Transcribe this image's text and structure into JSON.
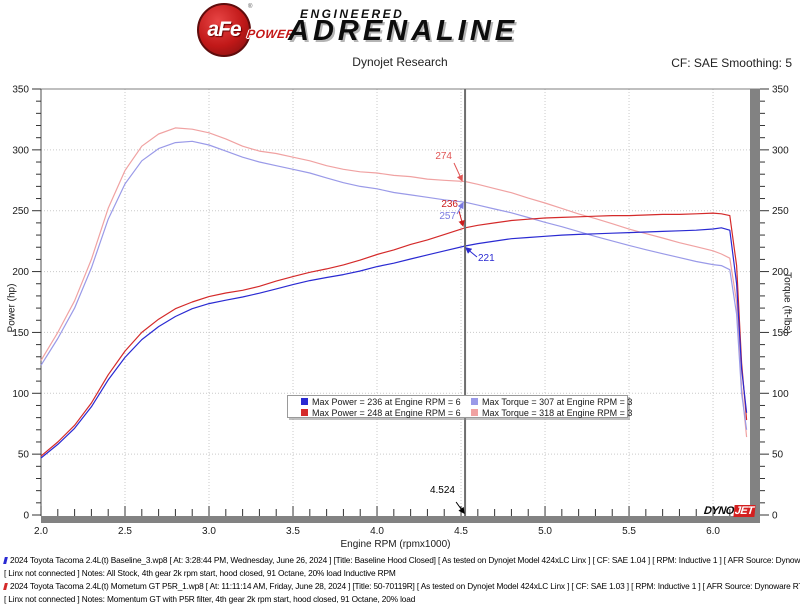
{
  "header": {
    "title": "Dynojet Research",
    "smoothing": "CF: SAE Smoothing: 5",
    "logo": {
      "afe": "aFe",
      "reg": "®",
      "power": "POWER",
      "engineered": "ENGINEERED",
      "adrenaline": "ADRENALINE"
    }
  },
  "chart_data": {
    "type": "line",
    "xlabel": "Engine RPM (rpmx1000)",
    "ylabel_left": "Power (hp)",
    "ylabel_right": "Torque (ft-lbs)",
    "xlim": [
      2.0,
      6.22
    ],
    "ylim": [
      0,
      350
    ],
    "x_major_step": 0.5,
    "x_minor_step": 0.1,
    "y_major_step": 50,
    "y_minor_step": 10,
    "grid": "dotted",
    "series": [
      {
        "name": "torque-momentum-gt",
        "color": "#f0a2a2",
        "axis": "right",
        "points": [
          [
            2.0,
            127
          ],
          [
            2.1,
            150
          ],
          [
            2.2,
            176
          ],
          [
            2.3,
            210
          ],
          [
            2.4,
            252
          ],
          [
            2.5,
            283
          ],
          [
            2.6,
            303
          ],
          [
            2.7,
            313
          ],
          [
            2.8,
            318
          ],
          [
            2.9,
            317
          ],
          [
            3.0,
            314
          ],
          [
            3.1,
            309
          ],
          [
            3.2,
            303
          ],
          [
            3.3,
            299
          ],
          [
            3.4,
            297
          ],
          [
            3.5,
            294
          ],
          [
            3.6,
            291
          ],
          [
            3.7,
            287
          ],
          [
            3.8,
            284
          ],
          [
            3.9,
            282
          ],
          [
            4.0,
            281
          ],
          [
            4.1,
            279
          ],
          [
            4.2,
            278
          ],
          [
            4.3,
            276
          ],
          [
            4.4,
            275
          ],
          [
            4.524,
            274
          ],
          [
            4.6,
            271.7
          ],
          [
            4.7,
            268.2
          ],
          [
            4.8,
            264.8
          ],
          [
            4.9,
            260.4
          ],
          [
            5.0,
            256.3
          ],
          [
            5.1,
            251.9
          ],
          [
            5.2,
            247.4
          ],
          [
            5.3,
            243.5
          ],
          [
            5.4,
            239.3
          ],
          [
            5.5,
            234.9
          ],
          [
            5.6,
            231.2
          ],
          [
            5.7,
            227.6
          ],
          [
            5.8,
            223.7
          ],
          [
            5.9,
            220.4
          ],
          [
            6.0,
            217.1
          ],
          [
            6.05,
            214.4
          ],
          [
            6.1,
            211
          ],
          [
            6.14,
            175
          ],
          [
            6.17,
            105
          ],
          [
            6.2,
            64
          ]
        ]
      },
      {
        "name": "torque-baseline",
        "color": "#9a9ae8",
        "axis": "right",
        "points": [
          [
            2.0,
            123
          ],
          [
            2.1,
            145
          ],
          [
            2.2,
            170
          ],
          [
            2.3,
            203
          ],
          [
            2.4,
            243
          ],
          [
            2.5,
            272
          ],
          [
            2.6,
            291
          ],
          [
            2.7,
            301
          ],
          [
            2.8,
            306
          ],
          [
            2.9,
            307
          ],
          [
            3.0,
            304
          ],
          [
            3.1,
            299
          ],
          [
            3.2,
            294
          ],
          [
            3.3,
            290
          ],
          [
            3.4,
            287
          ],
          [
            3.5,
            284
          ],
          [
            3.6,
            281
          ],
          [
            3.7,
            277
          ],
          [
            3.8,
            273
          ],
          [
            3.9,
            270
          ],
          [
            4.0,
            268
          ],
          [
            4.1,
            265
          ],
          [
            4.2,
            263
          ],
          [
            4.3,
            261
          ],
          [
            4.4,
            259
          ],
          [
            4.524,
            257
          ],
          [
            4.6,
            254.6
          ],
          [
            4.7,
            251.4
          ],
          [
            4.8,
            248.3
          ],
          [
            4.9,
            244.4
          ],
          [
            5.0,
            240.5
          ],
          [
            5.1,
            236.9
          ],
          [
            5.2,
            232.8
          ],
          [
            5.3,
            228.9
          ],
          [
            5.4,
            225.2
          ],
          [
            5.5,
            221.5
          ],
          [
            5.6,
            218
          ],
          [
            5.7,
            214.7
          ],
          [
            5.8,
            211.5
          ],
          [
            5.9,
            208.3
          ],
          [
            6.0,
            205.7
          ],
          [
            6.05,
            204.9
          ],
          [
            6.1,
            201.5
          ],
          [
            6.14,
            165
          ],
          [
            6.17,
            100
          ],
          [
            6.2,
            70
          ]
        ]
      },
      {
        "name": "power-momentum-gt",
        "color": "#d42a2a",
        "axis": "left",
        "points": [
          [
            2.0,
            48.4
          ],
          [
            2.1,
            60
          ],
          [
            2.2,
            73.7
          ],
          [
            2.3,
            92
          ],
          [
            2.4,
            115.2
          ],
          [
            2.5,
            134.7
          ],
          [
            2.6,
            150
          ],
          [
            2.7,
            160.9
          ],
          [
            2.8,
            169.5
          ],
          [
            2.9,
            175
          ],
          [
            3.0,
            179.4
          ],
          [
            3.1,
            182.4
          ],
          [
            3.2,
            184.6
          ],
          [
            3.3,
            187.9
          ],
          [
            3.4,
            192.2
          ],
          [
            3.5,
            195.9
          ],
          [
            3.6,
            199.4
          ],
          [
            3.7,
            202.2
          ],
          [
            3.8,
            205.5
          ],
          [
            3.9,
            209.4
          ],
          [
            4.0,
            214
          ],
          [
            4.1,
            217.8
          ],
          [
            4.2,
            222.3
          ],
          [
            4.3,
            226
          ],
          [
            4.4,
            230.4
          ],
          [
            4.524,
            236
          ],
          [
            4.6,
            238
          ],
          [
            4.7,
            240
          ],
          [
            4.8,
            242
          ],
          [
            4.9,
            243
          ],
          [
            5.0,
            244
          ],
          [
            5.1,
            244.5
          ],
          [
            5.2,
            245
          ],
          [
            5.3,
            245.5
          ],
          [
            5.4,
            246
          ],
          [
            5.5,
            246
          ],
          [
            5.6,
            246.5
          ],
          [
            5.7,
            247
          ],
          [
            5.8,
            247
          ],
          [
            5.9,
            247.5
          ],
          [
            6.0,
            248
          ],
          [
            6.05,
            247.5
          ],
          [
            6.1,
            246
          ],
          [
            6.14,
            205
          ],
          [
            6.17,
            125
          ],
          [
            6.2,
            78
          ]
        ]
      },
      {
        "name": "power-baseline",
        "color": "#2a2ad2",
        "axis": "left",
        "points": [
          [
            2.0,
            46.8
          ],
          [
            2.1,
            58
          ],
          [
            2.2,
            71.2
          ],
          [
            2.3,
            88.9
          ],
          [
            2.4,
            111
          ],
          [
            2.5,
            129.5
          ],
          [
            2.6,
            144.1
          ],
          [
            2.7,
            154.8
          ],
          [
            2.8,
            163.1
          ],
          [
            2.9,
            169.5
          ],
          [
            3.0,
            173.7
          ],
          [
            3.1,
            176.5
          ],
          [
            3.2,
            179.1
          ],
          [
            3.3,
            182.2
          ],
          [
            3.4,
            185.8
          ],
          [
            3.5,
            189.3
          ],
          [
            3.6,
            192.6
          ],
          [
            3.7,
            195.1
          ],
          [
            3.8,
            197.5
          ],
          [
            3.9,
            200.5
          ],
          [
            4.0,
            204.1
          ],
          [
            4.1,
            206.9
          ],
          [
            4.2,
            210.3
          ],
          [
            4.3,
            213.7
          ],
          [
            4.4,
            217
          ],
          [
            4.524,
            221
          ],
          [
            4.6,
            223
          ],
          [
            4.7,
            225
          ],
          [
            4.8,
            227
          ],
          [
            4.9,
            228
          ],
          [
            5.0,
            229
          ],
          [
            5.1,
            230
          ],
          [
            5.2,
            230.5
          ],
          [
            5.3,
            231
          ],
          [
            5.4,
            231.5
          ],
          [
            5.5,
            232
          ],
          [
            5.6,
            232.5
          ],
          [
            5.7,
            233
          ],
          [
            5.8,
            233.5
          ],
          [
            5.9,
            234
          ],
          [
            6.0,
            235
          ],
          [
            6.05,
            236
          ],
          [
            6.1,
            234
          ],
          [
            6.14,
            190
          ],
          [
            6.17,
            120
          ],
          [
            6.2,
            84
          ]
        ]
      }
    ],
    "cursor": {
      "rpm": 4.524,
      "label": "4.524"
    },
    "callouts": [
      {
        "label": "274",
        "value": 274,
        "color": "#e05555",
        "series": "torque-momentum-gt"
      },
      {
        "label": "236",
        "value": 236,
        "color": "#cc1d1d",
        "series": "power-momentum-gt"
      },
      {
        "label": "257",
        "value": 257,
        "color": "#7a7ae0",
        "series": "torque-baseline"
      },
      {
        "label": "221",
        "value": 221,
        "color": "#2a2ad2",
        "series": "power-baseline"
      }
    ],
    "legend": {
      "position": "bottom-center",
      "items": [
        {
          "color": "#2a2ad2",
          "label": "Max Power = 236 at Engine RPM = 6"
        },
        {
          "color": "#9a9ae8",
          "label": "Max Torque = 307 at Engine RPM = 3"
        },
        {
          "color": "#d42a2a",
          "label": "Max Power = 248 at Engine RPM = 6"
        },
        {
          "color": "#f0a2a2",
          "label": "Max Torque = 318 at Engine RPM = 3"
        }
      ]
    }
  },
  "watermark": {
    "dyno": "DYNO",
    "jet": "JET"
  },
  "footer": {
    "lines": [
      {
        "marker_color": "#2a2ad2",
        "text": "2024 Toyota Tacoma 2.4L(t) Baseline_3.wp8 [ At: 3:28:44 PM, Wednesday, June 26, 2024 ] [Title: Baseline Hood Closed]  [ As tested on Dynojet Model 424xLC Linx ] [ CF: SAE 1.04 ] [ RPM: Inductive 1 ] [ AFR Source: Dynoware RT WB ]"
      },
      {
        "marker_color": null,
        "text": "[ Linx not connected ] Notes: All Stock, 4th gear 2k rpm start, hood closed, 91 Octane, 20% load Inductive RPM"
      },
      {
        "marker_color": "#d42a2a",
        "text": "2024 Toyota Tacoma 2.4L(t) Mometum GT P5R_1.wp8 [ At: 11:11:14 AM, Friday, June 28, 2024 ] [Title: 50-70119R]  [ As tested on Dynojet Model 424xLC Linx ] [ CF: SAE 1.03 ] [ RPM: Inductive 1 ] [ AFR Source: Dynoware RT WB ]"
      },
      {
        "marker_color": null,
        "text": "[ Linx not connected ] Notes: Momentum GT with P5R filter, 4th gear 2k rpm start, hood closed, 91 Octane, 20% load"
      }
    ]
  }
}
